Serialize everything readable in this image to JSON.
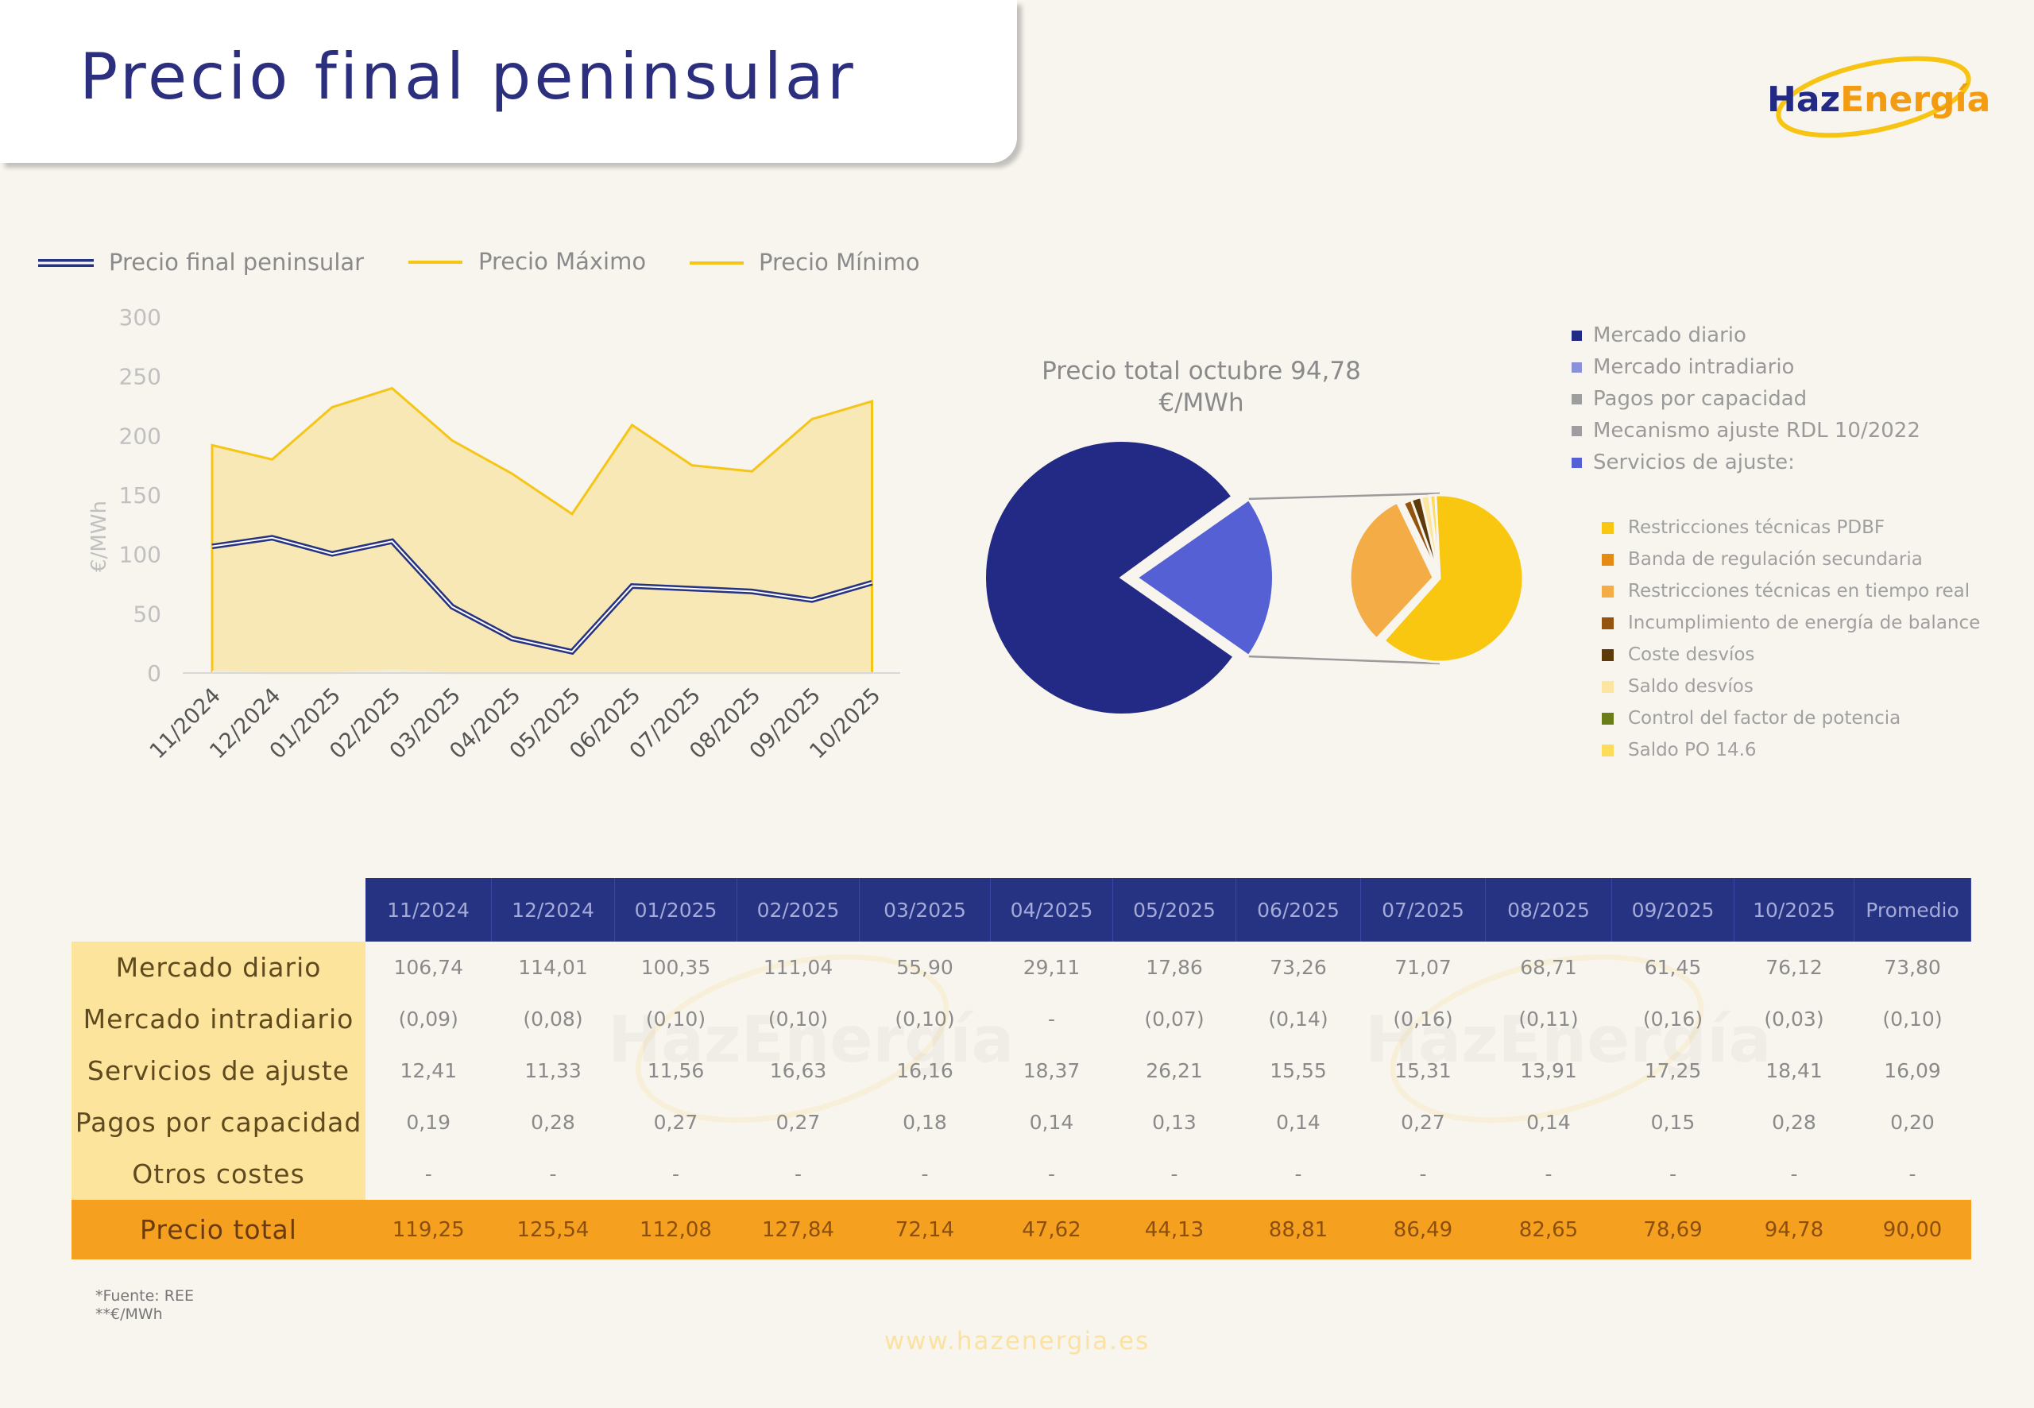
{
  "page": {
    "title": "Precio final peninsular",
    "logo": {
      "part1": "Haz",
      "part2": "Energía"
    },
    "footer_url": "www.hazenergia.es",
    "notes": [
      "*Fuente: REE",
      "**€/MWh"
    ],
    "watermark_text": "HazEnergía"
  },
  "colors": {
    "navy": "#263282",
    "orange": "#f5a01f",
    "yellow": "#f5c518",
    "area_fill": "#f7e8b5",
    "label_cell": "#fde49c"
  },
  "chart_data": [
    {
      "type": "line",
      "title": "",
      "ylabel": "€/MWh",
      "ylim": [
        0,
        300
      ],
      "yticks": [
        0,
        50,
        100,
        150,
        200,
        250,
        300
      ],
      "categories": [
        "11/2024",
        "12/2024",
        "01/2025",
        "02/2025",
        "03/2025",
        "04/2025",
        "05/2025",
        "06/2025",
        "07/2025",
        "08/2025",
        "09/2025",
        "10/2025"
      ],
      "series": [
        {
          "name": "Precio final peninsular",
          "values": [
            106.7,
            114.0,
            100.4,
            111.0,
            55.9,
            29.1,
            17.9,
            73.3,
            71.1,
            68.7,
            61.5,
            76.1
          ]
        },
        {
          "name": "Precio Máximo",
          "values": [
            192,
            180,
            224,
            240,
            196,
            168,
            134,
            209,
            175,
            170,
            214,
            229
          ]
        },
        {
          "name": "Precio Mínimo",
          "values": [
            1,
            0,
            0,
            2,
            0,
            0,
            0,
            0,
            0,
            0,
            0,
            0
          ]
        }
      ],
      "legend_position": "top"
    },
    {
      "type": "pie",
      "title": "Precio total octubre 94,78 €/MWh",
      "slices": [
        {
          "name": "Mercado diario",
          "value": 76.12,
          "color": "#232a85"
        },
        {
          "name": "Mercado intradiario",
          "value": 0.03,
          "color": "#8b91d8"
        },
        {
          "name": "Pagos por capacidad",
          "value": 0.28,
          "color": "#9e9e9e"
        },
        {
          "name": "Mecanismo ajuste RDL 10/2022",
          "value": 0,
          "color": "#9e9e9e"
        },
        {
          "name": "Servicios de ajuste:",
          "value": 18.41,
          "color": "#5460d3"
        }
      ],
      "breakdown_title": "Servicios de ajuste",
      "breakdown": [
        {
          "name": "Restricciones técnicas PDBF",
          "value": 11.5,
          "color": "#f9c70f"
        },
        {
          "name": "Banda de regulación secundaria",
          "value": 0.05,
          "color": "#e58a12"
        },
        {
          "name": "Restricciones técnicas en tiempo real",
          "value": 5.7,
          "color": "#f3ac46"
        },
        {
          "name": "Incumplimiento de energía de balance",
          "value": 0.3,
          "color": "#93540f"
        },
        {
          "name": "Coste desvíos",
          "value": 0.35,
          "color": "#5d3a0a"
        },
        {
          "name": "Saldo desvíos",
          "value": 0.3,
          "color": "#fbe5a0"
        },
        {
          "name": "Control del factor de potencia",
          "value": 0.02,
          "color": "#6b7d18"
        },
        {
          "name": "Saldo PO 14.6",
          "value": 0.2,
          "color": "#fddc5c"
        }
      ]
    },
    {
      "type": "table",
      "columns": [
        "11/2024",
        "12/2024",
        "01/2025",
        "02/2025",
        "03/2025",
        "04/2025",
        "05/2025",
        "06/2025",
        "07/2025",
        "08/2025",
        "09/2025",
        "10/2025",
        "Promedio"
      ],
      "rows": [
        {
          "label": "Mercado diario",
          "values": [
            "106,74",
            "114,01",
            "100,35",
            "111,04",
            "55,90",
            "29,11",
            "17,86",
            "73,26",
            "71,07",
            "68,71",
            "61,45",
            "76,12",
            "73,80"
          ]
        },
        {
          "label": "Mercado intradiario",
          "values": [
            "(0,09)",
            "(0,08)",
            "(0,10)",
            "(0,10)",
            "(0,10)",
            "-",
            "(0,07)",
            "(0,14)",
            "(0,16)",
            "(0,11)",
            "(0,16)",
            "(0,03)",
            "(0,10)"
          ]
        },
        {
          "label": "Servicios de ajuste",
          "values": [
            "12,41",
            "11,33",
            "11,56",
            "16,63",
            "16,16",
            "18,37",
            "26,21",
            "15,55",
            "15,31",
            "13,91",
            "17,25",
            "18,41",
            "16,09"
          ]
        },
        {
          "label": "Pagos por capacidad",
          "values": [
            "0,19",
            "0,28",
            "0,27",
            "0,27",
            "0,18",
            "0,14",
            "0,13",
            "0,14",
            "0,27",
            "0,14",
            "0,15",
            "0,28",
            "0,20"
          ]
        },
        {
          "label": "Otros costes",
          "values": [
            "-",
            "-",
            "-",
            "-",
            "-",
            "-",
            "-",
            "-",
            "-",
            "-",
            "-",
            "-",
            "-"
          ]
        }
      ],
      "total": {
        "label": "Precio total",
        "values": [
          "119,25",
          "125,54",
          "112,08",
          "127,84",
          "72,14",
          "47,62",
          "44,13",
          "88,81",
          "86,49",
          "82,65",
          "78,69",
          "94,78",
          "90,00"
        ]
      }
    }
  ]
}
